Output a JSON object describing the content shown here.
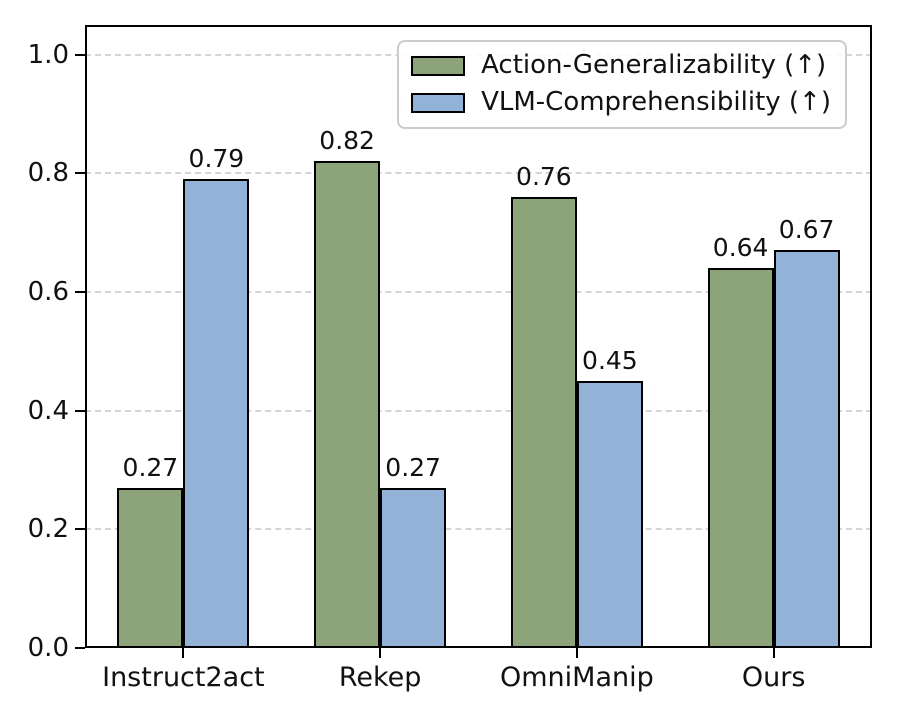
{
  "chart_data": {
    "type": "bar",
    "title": "",
    "xlabel": "",
    "ylabel": "",
    "categories": [
      "Instruct2act",
      "Rekep",
      "OmniManip",
      "Ours"
    ],
    "series": [
      {
        "name": "Action-Generalizability (↑)",
        "color": "#8da37a",
        "values": [
          0.27,
          0.82,
          0.76,
          0.64
        ]
      },
      {
        "name": "VLM-Comprehensibility (↑)",
        "color": "#92b2d8",
        "values": [
          0.79,
          0.27,
          0.45,
          0.67
        ]
      }
    ],
    "bar_edge_color": "#000000",
    "value_labels_shown": true,
    "value_label_decimals": 2,
    "ylim": [
      0,
      1.05
    ],
    "ytick_values": [
      0.0,
      0.2,
      0.4,
      0.6,
      0.8,
      1.0
    ],
    "ytick_labels": [
      "0.0",
      "0.2",
      "0.4",
      "0.6",
      "0.8",
      "1.0"
    ],
    "grid": {
      "axis": "y",
      "style": "dashed",
      "color": "#d5d5d5"
    },
    "legend": {
      "position": "upper right",
      "border_color": "#cccccc"
    },
    "frame": "full box"
  }
}
